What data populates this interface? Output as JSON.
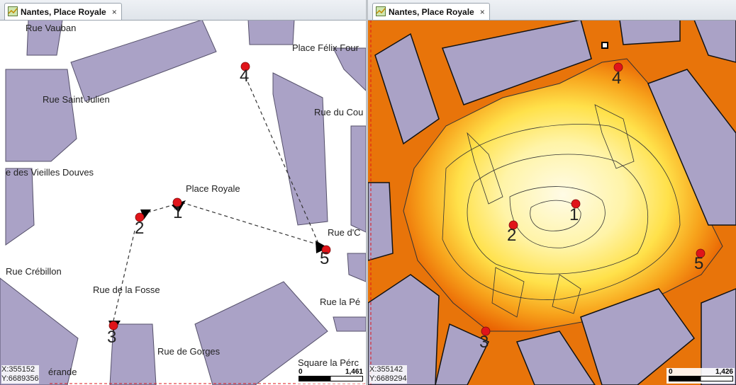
{
  "left_panel": {
    "tab_title": "Nantes, Place Royale",
    "tab_close": "×",
    "street_labels": [
      "Rue Vauban",
      "Place Félix Four",
      "Rue Saint Julien",
      "Rue du Cou",
      "e des Vieilles Douves",
      "Place Royale",
      "Rue d'C",
      "Rue Crébillon",
      "Rue de la Fosse",
      "Rue la Pé",
      "Rue de Gorges",
      "Square la Pérc",
      "érande"
    ],
    "waypoints": [
      "1",
      "2",
      "3",
      "4",
      "5"
    ],
    "coords": {
      "x": "X:355152",
      "y": "Y:6689356"
    },
    "scale": {
      "min": "0",
      "max": "1,461"
    }
  },
  "right_panel": {
    "tab_title": "Nantes, Place Royale",
    "tab_close": "×",
    "waypoints": [
      "1",
      "2",
      "3",
      "4",
      "5"
    ],
    "coords": {
      "x": "X:355142",
      "y": "Y:6689294"
    },
    "scale": {
      "min": "0",
      "max": "1,426"
    }
  },
  "colors": {
    "building": "#aaa2c6",
    "street": "#ffffff",
    "waypoint": "#e0141a",
    "heat_low": "#fffbe6",
    "heat_mid": "#ffe14a",
    "heat_high": "#e85d00"
  }
}
